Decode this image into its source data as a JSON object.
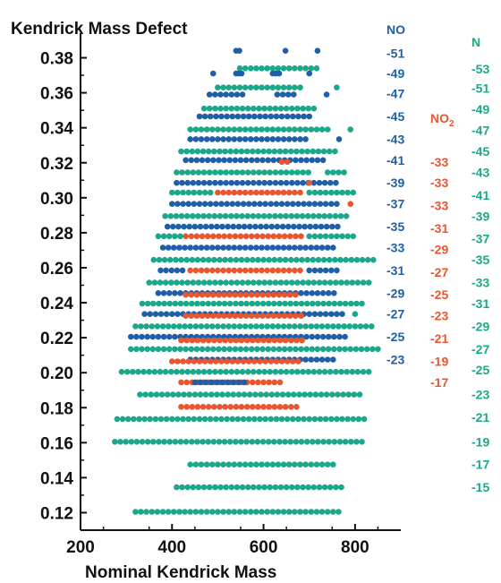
{
  "chart_data": {
    "type": "scatter",
    "title": "",
    "xlabel": "Nominal Kendrick Mass",
    "ylabel": "Kendrick Mass Defect",
    "xlim": [
      200,
      900
    ],
    "ylim": [
      0.11,
      0.39
    ],
    "xticks": [
      200,
      400,
      600,
      800
    ],
    "yticks": [
      0.12,
      0.14,
      0.16,
      0.18,
      0.2,
      0.22,
      0.24,
      0.26,
      0.28,
      0.3,
      0.32,
      0.34,
      0.36,
      0.38
    ],
    "ytick_labels": [
      "0.12",
      "0.14",
      "0.16",
      "0.18",
      "0.20",
      "0.22",
      "0.24",
      "0.26",
      "0.28",
      "0.30",
      "0.32",
      "0.34",
      "0.36",
      "0.38"
    ],
    "xtick_labels": [
      "200",
      "400",
      "600",
      "800"
    ],
    "grid": false,
    "colors": {
      "NO": "#1f5fa8",
      "NO2": "#e8552f",
      "N": "#1ba88a"
    },
    "series_headers": [
      {
        "key": "NO",
        "label": "NO",
        "sub": ""
      },
      {
        "key": "NO2",
        "label": "NO",
        "sub": "2"
      },
      {
        "key": "N",
        "label": "N",
        "sub": ""
      }
    ],
    "series_labels": {
      "NO": [
        "-51",
        "-49",
        "-47",
        "-45",
        "-43",
        "-41",
        "-39",
        "-37",
        "-35",
        "-33",
        "-31",
        "-29",
        "-27",
        "-25",
        "-23"
      ],
      "NO2": [
        "-33",
        "-33",
        "-33",
        "-31",
        "-29",
        "-27",
        "-25",
        "-23",
        "-21",
        "-19",
        "-17"
      ],
      "N": [
        "-53",
        "-51",
        "-49",
        "-47",
        "-45",
        "-43",
        "-41",
        "-39",
        "-37",
        "-35",
        "-33",
        "-31",
        "-29",
        "-27",
        "-25",
        "-23",
        "-21",
        "-19",
        "-17",
        "-15"
      ]
    },
    "series_label_y": {
      "NO": [
        0.3825,
        0.371,
        0.3595,
        0.3465,
        0.3335,
        0.3215,
        0.3085,
        0.2965,
        0.2835,
        0.2715,
        0.2585,
        0.2455,
        0.2335,
        0.2205,
        0.2075
      ],
      "NO2": [
        0.3205,
        0.3085,
        0.2955,
        0.2825,
        0.2705,
        0.2575,
        0.2445,
        0.2325,
        0.2195,
        0.2065,
        0.1945
      ],
      "N": [
        0.3735,
        0.3625,
        0.3505,
        0.3385,
        0.3265,
        0.3145,
        0.3015,
        0.2895,
        0.2765,
        0.2645,
        0.2515,
        0.2395,
        0.2265,
        0.2135,
        0.2015,
        0.1875,
        0.1745,
        0.1605,
        0.1475,
        0.1345
      ]
    },
    "rows": [
      {
        "y": 0.384,
        "segments": [
          {
            "s": "NO",
            "x0": 540,
            "x1": 550,
            "dx": 7
          },
          {
            "s": "NO",
            "x0": 648,
            "x1": 648,
            "dx": 7
          },
          {
            "s": "NO",
            "x0": 718,
            "x1": 718,
            "dx": 7
          }
        ]
      },
      {
        "y": 0.374,
        "segments": [
          {
            "s": "N",
            "x0": 548,
            "x1": 718,
            "dx": 12
          }
        ]
      },
      {
        "y": 0.371,
        "segments": [
          {
            "s": "NO",
            "x0": 490,
            "x1": 490,
            "dx": 7
          },
          {
            "s": "NO",
            "x0": 540,
            "x1": 552,
            "dx": 6
          },
          {
            "s": "NO",
            "x0": 620,
            "x1": 640,
            "dx": 7
          },
          {
            "s": "NO",
            "x0": 700,
            "x1": 700,
            "dx": 7
          }
        ]
      },
      {
        "y": 0.363,
        "segments": [
          {
            "s": "N",
            "x0": 500,
            "x1": 680,
            "dx": 12
          },
          {
            "s": "N",
            "x0": 760,
            "x1": 760,
            "dx": 12
          }
        ]
      },
      {
        "y": 0.359,
        "segments": [
          {
            "s": "NO",
            "x0": 482,
            "x1": 560,
            "dx": 12
          },
          {
            "s": "NO",
            "x0": 630,
            "x1": 666,
            "dx": 12
          },
          {
            "s": "NO",
            "x0": 738,
            "x1": 738,
            "dx": 12
          }
        ]
      },
      {
        "y": 0.351,
        "segments": [
          {
            "s": "N",
            "x0": 470,
            "x1": 720,
            "dx": 12
          }
        ]
      },
      {
        "y": 0.3465,
        "segments": [
          {
            "s": "NO",
            "x0": 460,
            "x1": 700,
            "dx": 12
          }
        ]
      },
      {
        "y": 0.339,
        "segments": [
          {
            "s": "N",
            "x0": 440,
            "x1": 740,
            "dx": 12
          },
          {
            "s": "N",
            "x0": 790,
            "x1": 790,
            "dx": 12
          }
        ]
      },
      {
        "y": 0.3335,
        "segments": [
          {
            "s": "NO",
            "x0": 440,
            "x1": 700,
            "dx": 12
          },
          {
            "s": "NO",
            "x0": 765,
            "x1": 765,
            "dx": 12
          }
        ]
      },
      {
        "y": 0.3265,
        "segments": [
          {
            "s": "N",
            "x0": 420,
            "x1": 760,
            "dx": 12
          }
        ]
      },
      {
        "y": 0.3215,
        "segments": [
          {
            "s": "NO",
            "x0": 430,
            "x1": 730,
            "dx": 12
          }
        ]
      },
      {
        "y": 0.3205,
        "segments": [
          {
            "s": "NO2",
            "x0": 640,
            "x1": 660,
            "dx": 12
          }
        ]
      },
      {
        "y": 0.3145,
        "segments": [
          {
            "s": "N",
            "x0": 410,
            "x1": 700,
            "dx": 12
          },
          {
            "s": "N",
            "x0": 740,
            "x1": 780,
            "dx": 12
          }
        ]
      },
      {
        "y": 0.3085,
        "segments": [
          {
            "s": "NO",
            "x0": 410,
            "x1": 760,
            "dx": 12
          },
          {
            "s": "NO2",
            "x0": 700,
            "x1": 700,
            "dx": 12
          }
        ]
      },
      {
        "y": 0.303,
        "segments": [
          {
            "s": "NO2",
            "x0": 500,
            "x1": 690,
            "dx": 12
          },
          {
            "s": "N",
            "x0": 400,
            "x1": 490,
            "dx": 12
          },
          {
            "s": "N",
            "x0": 700,
            "x1": 800,
            "dx": 12
          }
        ]
      },
      {
        "y": 0.2965,
        "segments": [
          {
            "s": "NO",
            "x0": 400,
            "x1": 760,
            "dx": 12
          },
          {
            "s": "NO2",
            "x0": 790,
            "x1": 790,
            "dx": 12
          }
        ]
      },
      {
        "y": 0.2895,
        "segments": [
          {
            "s": "N",
            "x0": 385,
            "x1": 790,
            "dx": 12
          }
        ]
      },
      {
        "y": 0.2835,
        "segments": [
          {
            "s": "NO",
            "x0": 390,
            "x1": 770,
            "dx": 12
          }
        ]
      },
      {
        "y": 0.278,
        "segments": [
          {
            "s": "NO2",
            "x0": 430,
            "x1": 690,
            "dx": 12
          },
          {
            "s": "N",
            "x0": 370,
            "x1": 420,
            "dx": 12
          },
          {
            "s": "N",
            "x0": 700,
            "x1": 800,
            "dx": 12
          }
        ]
      },
      {
        "y": 0.2715,
        "segments": [
          {
            "s": "NO",
            "x0": 380,
            "x1": 760,
            "dx": 12
          }
        ]
      },
      {
        "y": 0.2645,
        "segments": [
          {
            "s": "N",
            "x0": 360,
            "x1": 850,
            "dx": 12
          }
        ]
      },
      {
        "y": 0.2585,
        "segments": [
          {
            "s": "NO2",
            "x0": 440,
            "x1": 690,
            "dx": 12
          },
          {
            "s": "NO",
            "x0": 375,
            "x1": 430,
            "dx": 12
          },
          {
            "s": "NO",
            "x0": 700,
            "x1": 760,
            "dx": 12
          }
        ]
      },
      {
        "y": 0.2515,
        "segments": [
          {
            "s": "N",
            "x0": 350,
            "x1": 830,
            "dx": 12
          }
        ]
      },
      {
        "y": 0.2455,
        "segments": [
          {
            "s": "NO",
            "x0": 370,
            "x1": 760,
            "dx": 12
          }
        ]
      },
      {
        "y": 0.2445,
        "segments": [
          {
            "s": "NO2",
            "x0": 430,
            "x1": 680,
            "dx": 12
          }
        ]
      },
      {
        "y": 0.2395,
        "segments": [
          {
            "s": "N",
            "x0": 335,
            "x1": 820,
            "dx": 12
          }
        ]
      },
      {
        "y": 0.2335,
        "segments": [
          {
            "s": "NO",
            "x0": 340,
            "x1": 780,
            "dx": 12
          },
          {
            "s": "N",
            "x0": 800,
            "x1": 800,
            "dx": 12
          }
        ]
      },
      {
        "y": 0.2325,
        "segments": [
          {
            "s": "NO2",
            "x0": 430,
            "x1": 690,
            "dx": 12
          }
        ]
      },
      {
        "y": 0.2265,
        "segments": [
          {
            "s": "N",
            "x0": 320,
            "x1": 840,
            "dx": 12
          }
        ]
      },
      {
        "y": 0.2205,
        "segments": [
          {
            "s": "NO",
            "x0": 310,
            "x1": 780,
            "dx": 12
          }
        ]
      },
      {
        "y": 0.2185,
        "segments": [
          {
            "s": "NO2",
            "x0": 420,
            "x1": 690,
            "dx": 12
          }
        ]
      },
      {
        "y": 0.2135,
        "segments": [
          {
            "s": "N",
            "x0": 310,
            "x1": 860,
            "dx": 12
          }
        ]
      },
      {
        "y": 0.2075,
        "segments": [
          {
            "s": "NO",
            "x0": 440,
            "x1": 760,
            "dx": 12
          }
        ]
      },
      {
        "y": 0.2065,
        "segments": [
          {
            "s": "NO2",
            "x0": 400,
            "x1": 680,
            "dx": 12
          }
        ]
      },
      {
        "y": 0.2005,
        "segments": [
          {
            "s": "N",
            "x0": 290,
            "x1": 830,
            "dx": 12
          }
        ]
      },
      {
        "y": 0.1945,
        "segments": [
          {
            "s": "NO2",
            "x0": 420,
            "x1": 640,
            "dx": 12
          },
          {
            "s": "NO",
            "x0": 450,
            "x1": 560,
            "dx": 12
          }
        ]
      },
      {
        "y": 0.1875,
        "segments": [
          {
            "s": "N",
            "x0": 330,
            "x1": 810,
            "dx": 12
          }
        ]
      },
      {
        "y": 0.1805,
        "segments": [
          {
            "s": "NO2",
            "x0": 420,
            "x1": 680,
            "dx": 12
          }
        ]
      },
      {
        "y": 0.1735,
        "segments": [
          {
            "s": "N",
            "x0": 280,
            "x1": 820,
            "dx": 12
          }
        ]
      },
      {
        "y": 0.1605,
        "segments": [
          {
            "s": "N",
            "x0": 275,
            "x1": 820,
            "dx": 12
          }
        ]
      },
      {
        "y": 0.1475,
        "segments": [
          {
            "s": "N",
            "x0": 440,
            "x1": 760,
            "dx": 12
          }
        ]
      },
      {
        "y": 0.1345,
        "segments": [
          {
            "s": "N",
            "x0": 410,
            "x1": 780,
            "dx": 12
          }
        ]
      },
      {
        "y": 0.1205,
        "segments": [
          {
            "s": "N",
            "x0": 320,
            "x1": 770,
            "dx": 12
          }
        ]
      }
    ]
  }
}
